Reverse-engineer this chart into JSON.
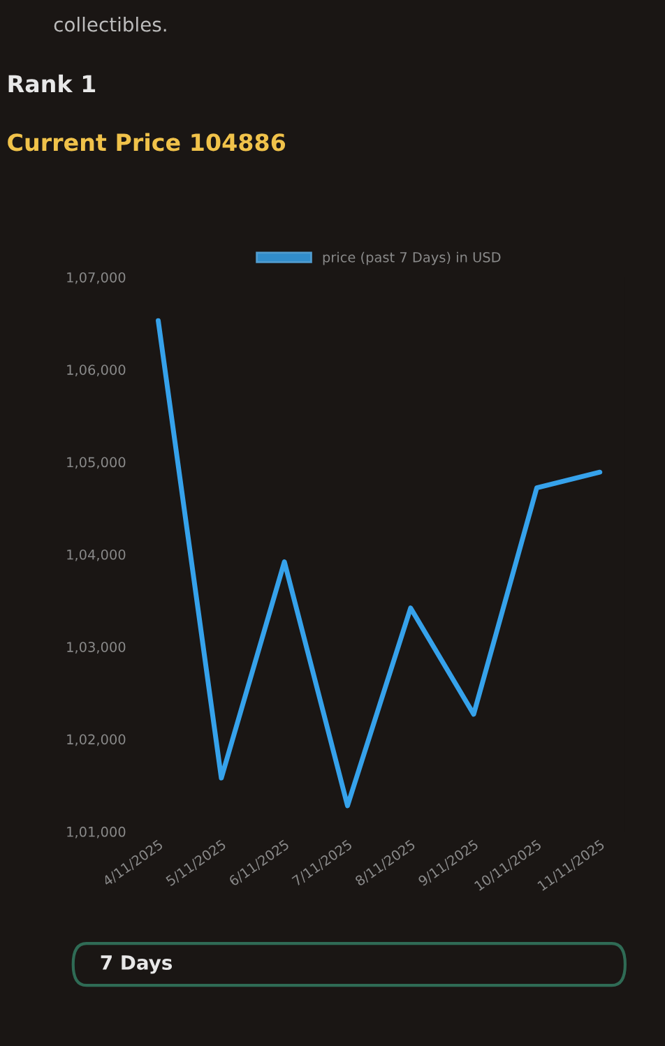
{
  "chart_data": {
    "type": "line",
    "annotations": [
      "collectibles.",
      "Rank 1",
      "Current Price 104886",
      "7 Days"
    ],
    "categories": [
      "4/11/2025",
      "5/11/2025",
      "6/11/2025",
      "7/11/2025",
      "8/11/2025",
      "9/11/2025",
      "10/11/2025",
      "11/11/2025"
    ],
    "series": [
      {
        "name": "price (past 7 Days) in USD",
        "color": "#36a2eb",
        "values": [
          106530,
          101580,
          103920,
          101280,
          103420,
          102270,
          104720,
          104890
        ]
      }
    ],
    "ylim": [
      101000,
      107000
    ],
    "yticks": [
      {
        "value": 101000,
        "label": "1,01,000"
      },
      {
        "value": 102000,
        "label": "1,02,000"
      },
      {
        "value": 103000,
        "label": "1,03,000"
      },
      {
        "value": 104000,
        "label": "1,04,000"
      },
      {
        "value": 105000,
        "label": "1,05,000"
      },
      {
        "value": 106000,
        "label": "1,06,000"
      },
      {
        "value": 107000,
        "label": "1,07,000"
      }
    ],
    "legend": "top",
    "grid": false,
    "marker": "none",
    "line_style": "solid"
  }
}
